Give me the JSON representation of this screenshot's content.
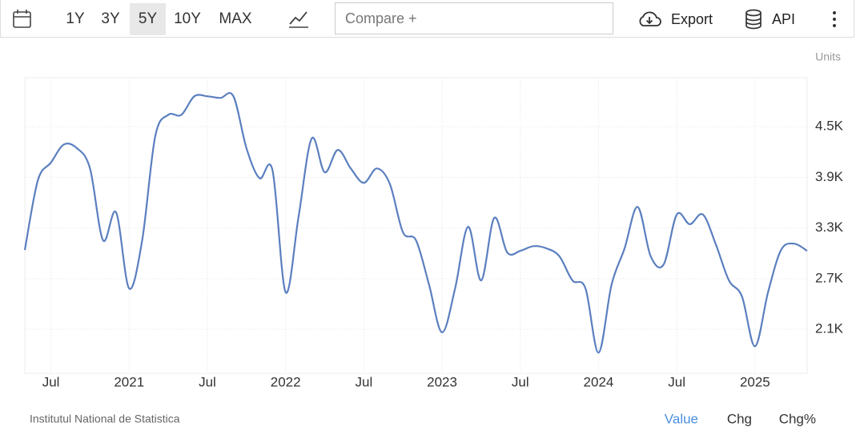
{
  "toolbar": {
    "ranges": [
      "1Y",
      "3Y",
      "5Y",
      "10Y",
      "MAX"
    ],
    "selected_range": 2,
    "compare": "Compare +",
    "export": "Export",
    "api": "API"
  },
  "chart_data": {
    "type": "line",
    "units": "Units",
    "source": "Institutul National de Statistica",
    "x": [
      "2020-05",
      "2020-06",
      "2020-07",
      "2020-08",
      "2020-09",
      "2020-10",
      "2020-11",
      "2020-12",
      "2021-01",
      "2021-02",
      "2021-03",
      "2021-04",
      "2021-05",
      "2021-06",
      "2021-07",
      "2021-08",
      "2021-09",
      "2021-10",
      "2021-11",
      "2021-12",
      "2022-01",
      "2022-02",
      "2022-03",
      "2022-04",
      "2022-05",
      "2022-06",
      "2022-07",
      "2022-08",
      "2022-09",
      "2022-10",
      "2022-11",
      "2022-12",
      "2023-01",
      "2023-02",
      "2023-03",
      "2023-04",
      "2023-05",
      "2023-06",
      "2023-07",
      "2023-08",
      "2023-09",
      "2023-10",
      "2023-11",
      "2023-12",
      "2024-01",
      "2024-02",
      "2024-03",
      "2024-04",
      "2024-05",
      "2024-06",
      "2024-07",
      "2024-08",
      "2024-09",
      "2024-10",
      "2024-11",
      "2024-12",
      "2025-01",
      "2025-02",
      "2025-03",
      "2025-04",
      "2025-05"
    ],
    "series": [
      {
        "color": "#5b7fbf",
        "values": [
          3040,
          3865,
          4075,
          4290,
          4245,
          4005,
          3155,
          3485,
          2585,
          3155,
          4385,
          4640,
          4640,
          4860,
          4860,
          4840,
          4860,
          4245,
          3890,
          3980,
          2540,
          3440,
          4360,
          3960,
          4225,
          4005,
          3835,
          4005,
          3820,
          3250,
          3155,
          2630,
          2065,
          2585,
          3315,
          2680,
          3420,
          3010,
          3030,
          3085,
          3060,
          2965,
          2680,
          2585,
          1825,
          2630,
          3060,
          3550,
          2965,
          2870,
          3460,
          3345,
          3460,
          3105,
          2680,
          2490,
          1900,
          2540,
          3040,
          3115,
          3030
        ]
      }
    ],
    "xlim": [
      "2020-05",
      "2025-05"
    ],
    "xticks": [
      {
        "value": "2020-07",
        "label": "Jul"
      },
      {
        "value": "2021-01",
        "label": "2021"
      },
      {
        "value": "2021-07",
        "label": "Jul"
      },
      {
        "value": "2022-01",
        "label": "2022"
      },
      {
        "value": "2022-07",
        "label": "Jul"
      },
      {
        "value": "2023-01",
        "label": "2023"
      },
      {
        "value": "2023-07",
        "label": "Jul"
      },
      {
        "value": "2024-01",
        "label": "2024"
      },
      {
        "value": "2024-07",
        "label": "Jul"
      },
      {
        "value": "2025-01",
        "label": "2025"
      }
    ],
    "ylim": [
      1580,
      5080
    ],
    "yticks": [
      {
        "value": 2100,
        "label": "2.1K"
      },
      {
        "value": 2700,
        "label": "2.7K"
      },
      {
        "value": 3300,
        "label": "3.3K"
      },
      {
        "value": 3900,
        "label": "3.9K"
      },
      {
        "value": 4500,
        "label": "4.5K"
      }
    ],
    "grid": true,
    "views": [
      "Value",
      "Chg",
      "Chg%"
    ],
    "selected_view": 0
  }
}
